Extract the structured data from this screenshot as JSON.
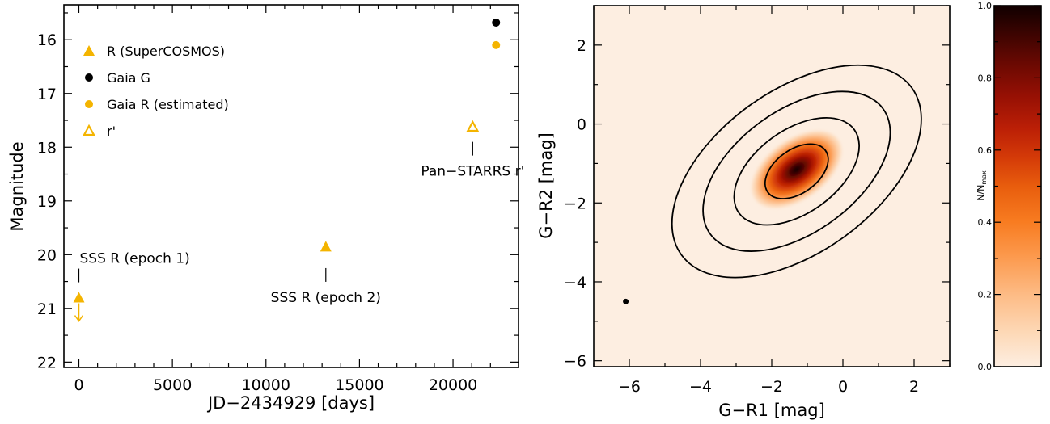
{
  "chart_data": [
    {
      "type": "scatter",
      "xlabel": "JD−2434929 [days]",
      "ylabel": "Magnitude",
      "xlim": [
        -800,
        23500
      ],
      "ylim": [
        22.1,
        15.35
      ],
      "y_inverted": true,
      "xticks": [
        0,
        5000,
        10000,
        15000,
        20000
      ],
      "yticks": [
        16,
        17,
        18,
        19,
        20,
        21,
        22
      ],
      "legend_position": "top-left",
      "legend": [
        {
          "label": "R (SuperCOSMOS)",
          "marker": "filled-triangle",
          "color": "#f4b400"
        },
        {
          "label": "Gaia G",
          "marker": "filled-circle",
          "color": "#000000"
        },
        {
          "label": "Gaia R (estimated)",
          "marker": "filled-circle",
          "color": "#f4b400"
        },
        {
          "label": "r'",
          "marker": "open-triangle",
          "color": "#f4b400"
        }
      ],
      "series": [
        {
          "name": "R (SuperCOSMOS)",
          "marker": "filled-triangle",
          "color": "#f4b400",
          "points": [
            {
              "x": 0,
              "y": 20.8,
              "upper_limit": true
            },
            {
              "x": 13200,
              "y": 19.85
            }
          ]
        },
        {
          "name": "Gaia G",
          "marker": "filled-circle",
          "color": "#000000",
          "points": [
            {
              "x": 22300,
              "y": 15.68
            }
          ]
        },
        {
          "name": "Gaia R (estimated)",
          "marker": "filled-circle",
          "color": "#f4b400",
          "points": [
            {
              "x": 22300,
              "y": 16.1
            }
          ]
        },
        {
          "name": "r'",
          "marker": "open-triangle",
          "color": "#f4b400",
          "points": [
            {
              "x": 21050,
              "y": 17.62
            }
          ]
        }
      ],
      "annotations": [
        {
          "text": "SSS R (epoch 1)",
          "x": 0,
          "y": 20.5,
          "place": "above"
        },
        {
          "text": "SSS R (epoch 2)",
          "x": 13200,
          "y": 20.25,
          "place": "below"
        },
        {
          "text": "Pan−STARRS r'",
          "x": 21050,
          "y": 17.9,
          "place": "below"
        }
      ]
    },
    {
      "type": "heatmap",
      "xlabel": "G−R1 [mag]",
      "ylabel": "G−R2 [mag]",
      "xlim": [
        -7.0,
        3.0
      ],
      "ylim": [
        -6.15,
        3.0
      ],
      "xticks": [
        -6,
        -4,
        -2,
        0,
        2
      ],
      "yticks": [
        -6,
        -4,
        -2,
        0,
        2
      ],
      "distribution": {
        "center": [
          -1.3,
          -1.15
        ],
        "orientation_deg": 36,
        "shape": "elongated 2D density"
      },
      "contours": [
        {
          "level": 1,
          "center": [
            -1.3,
            -1.2
          ],
          "semi_major": 1.0,
          "semi_minor": 0.55,
          "angle_deg": 36
        },
        {
          "level": 2,
          "center": [
            -1.3,
            -1.2
          ],
          "semi_major": 2.0,
          "semi_minor": 1.05,
          "angle_deg": 36
        },
        {
          "level": 3,
          "center": [
            -1.3,
            -1.2
          ],
          "semi_major": 3.0,
          "semi_minor": 1.55,
          "angle_deg": 36
        },
        {
          "level": 4,
          "center": [
            -1.3,
            -1.2
          ],
          "semi_major": 4.0,
          "semi_minor": 2.05,
          "angle_deg": 36
        }
      ],
      "point": {
        "x": -6.1,
        "y": -4.5,
        "color": "#000000"
      },
      "colorbar": {
        "label": "N/N",
        "label_subscript": "max",
        "range": [
          0.0,
          1.0
        ],
        "ticks": [
          "0.0",
          "0.2",
          "0.4",
          "0.6",
          "0.8",
          "1.0"
        ],
        "colormap": [
          "#fdeee1",
          "#fdd7b4",
          "#fdbb85",
          "#fc9b50",
          "#f87c21",
          "#e85d0d",
          "#d43a08",
          "#bb1f06",
          "#961004",
          "#6a0902",
          "#3d0401",
          "#100000"
        ]
      }
    }
  ]
}
